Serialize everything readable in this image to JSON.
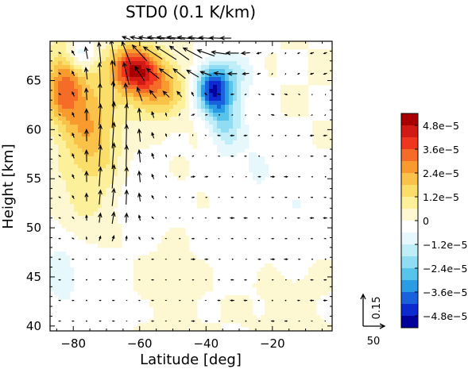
{
  "chart_data": {
    "type": "heatmap",
    "title": "STD0 (0.1 K/km)",
    "xlabel": "Latitude [deg]",
    "ylabel": "Height [km]",
    "xlim": [
      -87,
      -2
    ],
    "ylim": [
      39.5,
      69
    ],
    "xticks": [
      -80,
      -60,
      -40,
      -20
    ],
    "xtick_labels": [
      "−80",
      "−60",
      "−40",
      "−20"
    ],
    "yticks": [
      40,
      45,
      50,
      55,
      60,
      65
    ],
    "ytick_labels": [
      "40",
      "45",
      "50",
      "55",
      "60",
      "65"
    ],
    "colorbar": {
      "labels": [
        "4.8e−5",
        "3.6e−5",
        "2.4e−5",
        "1.2e−5",
        "0",
        "−1.2e−5",
        "−2.4e−5",
        "−3.6e−5",
        "−4.8e−5"
      ],
      "colors": [
        "#a80000",
        "#d21a14",
        "#f0361e",
        "#f46c28",
        "#f99a2e",
        "#fbc24a",
        "#fbde6a",
        "#fcf09a",
        "#fef8d2",
        "#ffffff",
        "#e6f8fc",
        "#c0eef8",
        "#90dcf2",
        "#58c4ec",
        "#2a9ce4",
        "#1a62dc",
        "#0c2ad0",
        "#00009a"
      ]
    },
    "anomalies": [
      {
        "lat": -62,
        "z": 66.3,
        "v": 4.2e-05,
        "sx": 5,
        "sz": 1.6
      },
      {
        "lat": -55,
        "z": 64.2,
        "v": 2.6e-05,
        "sx": 6,
        "sz": 2.0
      },
      {
        "lat": -83,
        "z": 64.5,
        "v": 2.8e-05,
        "sx": 4,
        "sz": 2.6
      },
      {
        "lat": -76,
        "z": 61.5,
        "v": 1.8e-05,
        "sx": 6,
        "sz": 3.5
      },
      {
        "lat": -73,
        "z": 57.5,
        "v": 9e-06,
        "sx": 6,
        "sz": 3.5
      },
      {
        "lat": -78,
        "z": 52,
        "v": 5e-06,
        "sx": 7,
        "sz": 3
      },
      {
        "lat": -38,
        "z": 64.2,
        "v": -4.4e-05,
        "sx": 3.5,
        "sz": 1.7
      },
      {
        "lat": -34,
        "z": 61.2,
        "v": -2e-05,
        "sx": 3.5,
        "sz": 2.4
      },
      {
        "lat": -78,
        "z": 67.5,
        "v": -1.6e-05,
        "sx": 3,
        "sz": 1.2
      },
      {
        "lat": -30,
        "z": 65.8,
        "v": -1e-05,
        "sx": 4,
        "sz": 1.6
      },
      {
        "lat": -84,
        "z": 45.5,
        "v": -9e-06,
        "sx": 4,
        "sz": 3.5
      },
      {
        "lat": -60,
        "z": 53.5,
        "v": -5e-06,
        "sx": 6,
        "sz": 3
      },
      {
        "lat": -25,
        "z": 56.5,
        "v": -6e-06,
        "sx": 4,
        "sz": 3
      },
      {
        "lat": -12,
        "z": 52.5,
        "v": -5e-06,
        "sx": 6,
        "sz": 3
      },
      {
        "lat": -72,
        "z": 44,
        "v": -4e-06,
        "sx": 5,
        "sz": 3
      },
      {
        "lat": -32,
        "z": 49,
        "v": -3e-06,
        "sx": 8,
        "sz": 3
      },
      {
        "lat": -50,
        "z": 44.5,
        "v": 3e-06,
        "sx": 6,
        "sz": 2.5
      },
      {
        "lat": -15,
        "z": 42,
        "v": 2.5e-06,
        "sx": 6,
        "sz": 2
      }
    ],
    "reference_vector": {
      "x_label": "50",
      "y_label": "0.15"
    }
  }
}
